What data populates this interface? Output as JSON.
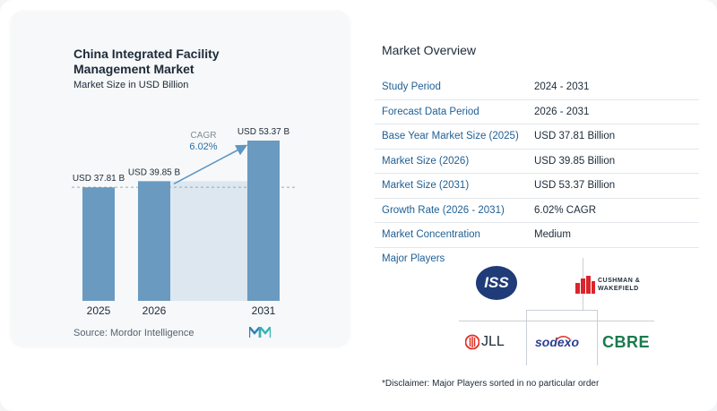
{
  "chart_data": {
    "type": "bar",
    "title": "China Integrated Facility Management Market",
    "subtitle": "Market Size in USD Billion",
    "categories": [
      "2025",
      "2026",
      "2031"
    ],
    "values": [
      37.81,
      39.85,
      53.37
    ],
    "data_labels": [
      "USD 37.81 B",
      "USD 39.85 B",
      "USD 53.37 B"
    ],
    "cagr_label": "CAGR",
    "cagr_value": "6.02%",
    "ylim": [
      0,
      53.37
    ],
    "colors": {
      "bar": "#6a9ac0",
      "growth_area": "#dce7f0",
      "arrow": "#5d97c4"
    }
  },
  "source": "Source: Mordor Intelligence",
  "overview": {
    "title": "Market Overview",
    "rows": [
      {
        "label": "Study Period",
        "value": "2024 - 2031"
      },
      {
        "label": "Forecast Data Period",
        "value": "2026 - 2031"
      },
      {
        "label": "Base Year Market Size (2025)",
        "value": "USD 37.81 Billion"
      },
      {
        "label": "Market Size (2026)",
        "value": "USD 39.85 Billion"
      },
      {
        "label": "Market Size (2031)",
        "value": "USD 53.37 Billion"
      },
      {
        "label": "Growth Rate (2026 - 2031)",
        "value": "6.02% CAGR"
      },
      {
        "label": "Market Concentration",
        "value": "Medium"
      }
    ]
  },
  "players": {
    "title": "Major Players",
    "logos": {
      "iss": "ISS",
      "cushman_line1": "CUSHMAN &",
      "cushman_line2": "WAKEFIELD",
      "jll": "JLL",
      "sodexo": "sodexo",
      "cbre": "CBRE"
    }
  },
  "disclaimer": "*Disclaimer: Major Players sorted in no particular order"
}
